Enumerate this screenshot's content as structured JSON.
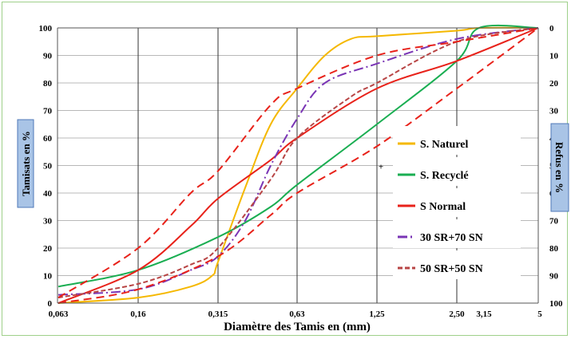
{
  "chart_data": {
    "type": "line",
    "xlabel": "Diamètre des Tamis en (mm)",
    "ylabel_left": "Tamisats en %",
    "ylabel_right": "Refus en %",
    "ylim": [
      0,
      100
    ],
    "x_categories": [
      "0,063",
      "0,16",
      "0,315",
      "0,63",
      "1,25",
      "2,50",
      "3,15",
      "5"
    ],
    "x_positions": [
      0.063,
      0.16,
      0.315,
      0.63,
      1.25,
      2.5,
      3.15,
      5
    ],
    "x_scale": "categorical-log-like",
    "y_ticks_left": [
      0,
      10,
      20,
      30,
      40,
      50,
      60,
      70,
      80,
      90,
      100
    ],
    "y_ticks_right": [
      100,
      90,
      80,
      70,
      60,
      50,
      40,
      30,
      20,
      10,
      0
    ],
    "grid": true,
    "legend_position": "right",
    "series": [
      {
        "name": "S. Naturel",
        "color": "#f5b800",
        "dash": "solid",
        "x": [
          0.063,
          0.16,
          0.25,
          0.3,
          0.315,
          0.4,
          0.5,
          0.63,
          0.8,
          1.0,
          1.25,
          2.5,
          3.15,
          5
        ],
        "y": [
          0,
          2,
          6,
          10,
          15,
          42,
          65,
          78,
          90,
          96,
          97,
          99,
          100,
          100
        ]
      },
      {
        "name": "S. Recyclé",
        "color": "#1aae52",
        "dash": "solid",
        "x": [
          0.063,
          0.16,
          0.315,
          0.5,
          0.63,
          1.25,
          2.5,
          3.15,
          5
        ],
        "y": [
          6,
          12,
          24,
          35,
          43,
          65,
          88,
          100,
          100
        ]
      },
      {
        "name": "S Normal",
        "color": "#e8221a",
        "dash": "solid",
        "x": [
          0.063,
          0.16,
          0.25,
          0.315,
          0.5,
          0.63,
          1.25,
          2.5,
          5
        ],
        "y": [
          0,
          12,
          28,
          38,
          52,
          60,
          78,
          88,
          100
        ]
      },
      {
        "name": "30 SR+70 SN",
        "color": "#7a35b5",
        "dash": "dashdot",
        "x": [
          0.063,
          0.16,
          0.25,
          0.315,
          0.4,
          0.5,
          0.63,
          0.8,
          1.25,
          2.5,
          5
        ],
        "y": [
          3,
          5,
          12,
          17,
          30,
          50,
          67,
          80,
          87,
          96,
          100
        ]
      },
      {
        "name": "50 SR+50 SN",
        "color": "#b84545",
        "dash": "shortdash",
        "x": [
          0.063,
          0.16,
          0.25,
          0.315,
          0.5,
          0.63,
          1.0,
          1.25,
          2.5,
          5
        ],
        "y": [
          2,
          7,
          14,
          20,
          45,
          60,
          75,
          80,
          95,
          100
        ]
      },
      {
        "name": "",
        "color": "#e8221a",
        "dash": "longdash",
        "x": [
          0.063,
          0.16,
          0.25,
          0.315,
          0.5,
          0.63,
          1.25,
          2.5,
          5
        ],
        "y": [
          2,
          20,
          40,
          48,
          72,
          78,
          90,
          95,
          100
        ]
      },
      {
        "name": "",
        "color": "#e8221a",
        "dash": "longdash",
        "x": [
          0.063,
          0.16,
          0.315,
          0.5,
          0.63,
          1.25,
          2.5,
          3.15,
          5
        ],
        "y": [
          0,
          5,
          17,
          32,
          40,
          57,
          78,
          84,
          100
        ]
      }
    ],
    "annotations": [
      {
        "text": "+",
        "x": 1.25,
        "y": 50
      }
    ]
  }
}
